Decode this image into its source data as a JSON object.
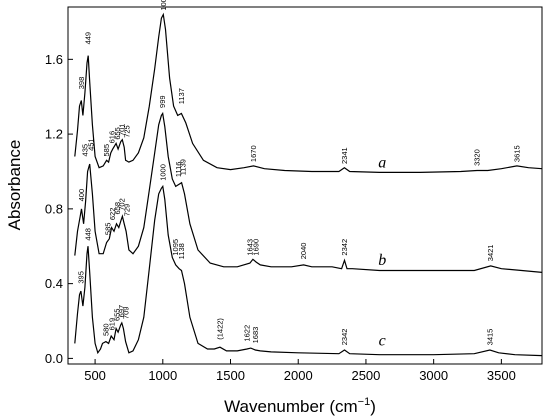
{
  "chart_data": {
    "type": "line",
    "xlabel": "Wavenumber (cm",
    "xlabel_sup": "−1",
    "xlabel_close": ")",
    "ylabel": "Absorbance",
    "xlim": [
      300,
      3800
    ],
    "ylim": [
      -0.03,
      1.88
    ],
    "xticks": [
      500,
      1000,
      1500,
      2000,
      2500,
      3000,
      3500
    ],
    "xtick_labels": [
      "500",
      "1000",
      "1500",
      "2000",
      "2500",
      "3000",
      "3500"
    ],
    "yticks": [
      0.0,
      0.4,
      0.8,
      1.2,
      1.6
    ],
    "ytick_labels": [
      "0.0",
      "0.4",
      "0.8",
      "1.2",
      "1.6"
    ],
    "grid": false,
    "series": [
      {
        "curve_label": "a",
        "curve_label_pos": [
          2620,
          1.02
        ],
        "x": [
          350,
          370,
          385,
          398,
          410,
          425,
          440,
          449,
          460,
          480,
          500,
          530,
          560,
          585,
          600,
          616,
          630,
          655,
          670,
          690,
          701,
          715,
          725,
          750,
          780,
          820,
          860,
          900,
          940,
          970,
          990,
          1004,
          1020,
          1050,
          1080,
          1110,
          1137,
          1170,
          1220,
          1300,
          1400,
          1500,
          1600,
          1670,
          1750,
          1900,
          2100,
          2300,
          2341,
          2380,
          2600,
          2900,
          3200,
          3320,
          3400,
          3500,
          3615,
          3700,
          3800
        ],
        "y": [
          1.08,
          1.22,
          1.35,
          1.38,
          1.3,
          1.42,
          1.58,
          1.62,
          1.48,
          1.25,
          1.08,
          1.02,
          1.03,
          1.06,
          1.05,
          1.1,
          1.12,
          1.15,
          1.12,
          1.16,
          1.17,
          1.13,
          1.06,
          1.05,
          1.06,
          1.1,
          1.18,
          1.35,
          1.55,
          1.72,
          1.82,
          1.84,
          1.76,
          1.5,
          1.35,
          1.3,
          1.31,
          1.26,
          1.15,
          1.06,
          1.02,
          1.01,
          1.02,
          1.03,
          1.015,
          1.005,
          1.0,
          1.0,
          1.02,
          1.0,
          0.995,
          0.995,
          1.0,
          1.005,
          1.005,
          1.015,
          1.03,
          1.02,
          1.015
        ],
        "labels": [
          {
            "text": "398",
            "x": 398,
            "y": 1.44
          },
          {
            "text": "449",
            "x": 449,
            "y": 1.68
          },
          {
            "text": "435",
            "x": 425,
            "y": 1.08
          },
          {
            "text": "451",
            "x": 470,
            "y": 1.11
          },
          {
            "text": "585",
            "x": 585,
            "y": 1.08
          },
          {
            "text": "616",
            "x": 625,
            "y": 1.15
          },
          {
            "text": "655",
            "x": 665,
            "y": 1.17
          },
          {
            "text": "701",
            "x": 700,
            "y": 1.19
          },
          {
            "text": "725",
            "x": 735,
            "y": 1.18
          },
          {
            "text": "1004",
            "x": 1004,
            "y": 1.86
          },
          {
            "text": "1137",
            "x": 1137,
            "y": 1.36
          },
          {
            "text": "1670",
            "x": 1670,
            "y": 1.05
          },
          {
            "text": "2341",
            "x": 2341,
            "y": 1.04
          },
          {
            "text": "3320",
            "x": 3320,
            "y": 1.03
          },
          {
            "text": "3615",
            "x": 3615,
            "y": 1.05
          }
        ]
      },
      {
        "curve_label": "b",
        "curve_label_pos": [
          2620,
          0.5
        ],
        "x": [
          350,
          370,
          390,
          400,
          415,
          430,
          445,
          460,
          480,
          500,
          530,
          560,
          585,
          605,
          622,
          640,
          658,
          675,
          692,
          702,
          715,
          729,
          750,
          780,
          820,
          860,
          900,
          940,
          970,
          990,
          999,
          1015,
          1040,
          1070,
          1095,
          1116,
          1139,
          1160,
          1200,
          1260,
          1350,
          1450,
          1550,
          1643,
          1665,
          1690,
          1720,
          1800,
          1950,
          2040,
          2100,
          2250,
          2320,
          2342,
          2360,
          2400,
          2600,
          3000,
          3300,
          3421,
          3500,
          3650,
          3800
        ],
        "y": [
          0.55,
          0.68,
          0.76,
          0.8,
          0.72,
          0.84,
          1.0,
          1.04,
          0.88,
          0.68,
          0.56,
          0.56,
          0.62,
          0.64,
          0.7,
          0.68,
          0.72,
          0.7,
          0.74,
          0.76,
          0.72,
          0.68,
          0.58,
          0.56,
          0.6,
          0.7,
          0.9,
          1.1,
          1.25,
          1.3,
          1.31,
          1.24,
          1.08,
          0.96,
          0.92,
          0.93,
          0.94,
          0.88,
          0.72,
          0.58,
          0.51,
          0.49,
          0.49,
          0.51,
          0.53,
          0.515,
          0.5,
          0.49,
          0.49,
          0.5,
          0.49,
          0.49,
          0.48,
          0.525,
          0.48,
          0.48,
          0.47,
          0.47,
          0.47,
          0.495,
          0.48,
          0.47,
          0.46
        ],
        "labels": [
          {
            "text": "400",
            "x": 400,
            "y": 0.84
          },
          {
            "text": "585",
            "x": 595,
            "y": 0.66
          },
          {
            "text": "622",
            "x": 630,
            "y": 0.74
          },
          {
            "text": "658",
            "x": 665,
            "y": 0.77
          },
          {
            "text": "702",
            "x": 700,
            "y": 0.79
          },
          {
            "text": "729",
            "x": 735,
            "y": 0.76
          },
          {
            "text": "999",
            "x": 999,
            "y": 1.34
          },
          {
            "text": "1116",
            "x": 1116,
            "y": 0.97
          },
          {
            "text": "1139",
            "x": 1150,
            "y": 0.98
          },
          {
            "text": "1643",
            "x": 1643,
            "y": 0.55
          },
          {
            "text": "1690",
            "x": 1690,
            "y": 0.55
          },
          {
            "text": "2040",
            "x": 2040,
            "y": 0.53
          },
          {
            "text": "2342",
            "x": 2342,
            "y": 0.55
          },
          {
            "text": "3421",
            "x": 3421,
            "y": 0.52
          }
        ]
      },
      {
        "curve_label": "c",
        "curve_label_pos": [
          2620,
          0.07
        ],
        "x": [
          350,
          370,
          385,
          395,
          410,
          425,
          440,
          448,
          460,
          480,
          500,
          520,
          540,
          555,
          580,
          600,
          619,
          640,
          655,
          670,
          690,
          697,
          709,
          725,
          750,
          780,
          820,
          860,
          900,
          940,
          970,
          990,
          1000,
          1015,
          1040,
          1070,
          1095,
          1120,
          1138,
          1160,
          1200,
          1260,
          1330,
          1380,
          1422,
          1470,
          1550,
          1622,
          1650,
          1683,
          1720,
          1800,
          2000,
          2300,
          2342,
          2380,
          2600,
          3000,
          3300,
          3415,
          3480,
          3600,
          3800
        ],
        "y": [
          0.08,
          0.24,
          0.34,
          0.36,
          0.28,
          0.38,
          0.56,
          0.6,
          0.46,
          0.22,
          0.08,
          0.03,
          0.05,
          0.08,
          0.09,
          0.08,
          0.12,
          0.1,
          0.16,
          0.14,
          0.18,
          0.19,
          0.16,
          0.09,
          0.03,
          0.04,
          0.1,
          0.22,
          0.48,
          0.74,
          0.88,
          0.91,
          0.92,
          0.85,
          0.66,
          0.54,
          0.5,
          0.48,
          0.47,
          0.4,
          0.22,
          0.08,
          0.05,
          0.05,
          0.06,
          0.04,
          0.04,
          0.05,
          0.055,
          0.045,
          0.04,
          0.035,
          0.03,
          0.025,
          0.045,
          0.025,
          0.02,
          0.02,
          0.025,
          0.045,
          0.03,
          0.02,
          0.015
        ],
        "labels": [
          {
            "text": "395",
            "x": 395,
            "y": 0.4
          },
          {
            "text": "448",
            "x": 448,
            "y": 0.63
          },
          {
            "text": "580",
            "x": 580,
            "y": 0.12
          },
          {
            "text": "619",
            "x": 625,
            "y": 0.15
          },
          {
            "text": "655",
            "x": 660,
            "y": 0.2
          },
          {
            "text": "697",
            "x": 695,
            "y": 0.22
          },
          {
            "text": "709",
            "x": 730,
            "y": 0.21
          },
          {
            "text": "1000",
            "x": 1000,
            "y": 0.95
          },
          {
            "text": "1095",
            "x": 1095,
            "y": 0.55
          },
          {
            "text": "1138",
            "x": 1138,
            "y": 0.53
          },
          {
            "text": "(1422)",
            "x": 1422,
            "y": 0.1
          },
          {
            "text": "1622",
            "x": 1622,
            "y": 0.09
          },
          {
            "text": "1683",
            "x": 1683,
            "y": 0.08
          },
          {
            "text": "2342",
            "x": 2342,
            "y": 0.07
          },
          {
            "text": "3415",
            "x": 3415,
            "y": 0.07
          }
        ]
      }
    ]
  }
}
